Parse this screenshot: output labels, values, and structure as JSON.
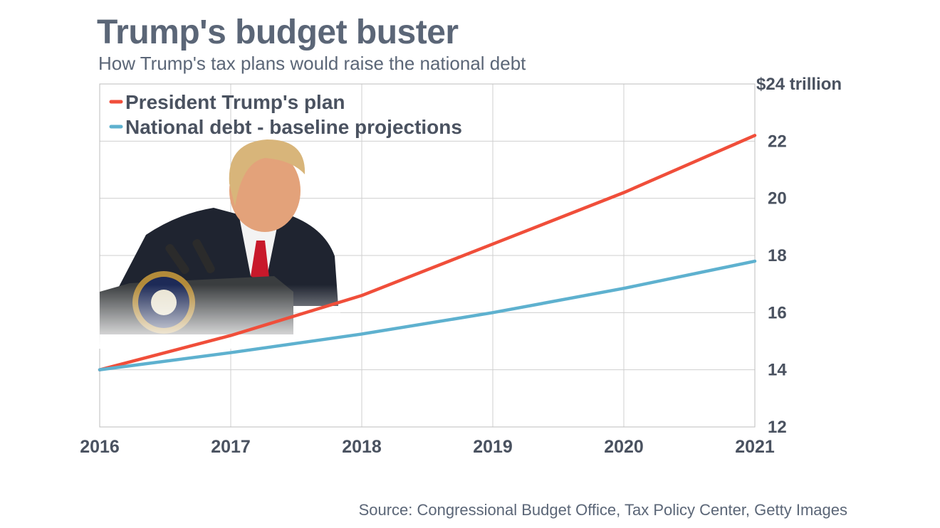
{
  "header": {
    "title": "Trump's budget buster",
    "subtitle": "How Trump's tax plans would raise the national debt"
  },
  "footer": {
    "source": "Source: Congressional Budget Office, Tax Policy Center, Getty Images"
  },
  "photo": {
    "description_icon": "podium-photo-icon"
  },
  "chart_data": {
    "type": "line",
    "title": "Trump's budget buster",
    "subtitle": "How Trump's tax plans would raise the national debt",
    "xlabel": "",
    "ylabel": "",
    "x": [
      2016,
      2017,
      2018,
      2019,
      2020,
      2021
    ],
    "x_tick_labels": [
      "2016",
      "2017",
      "2018",
      "2019",
      "2020",
      "2021"
    ],
    "ylim": [
      12,
      24
    ],
    "y_ticks": [
      12,
      14,
      16,
      18,
      20,
      22,
      24
    ],
    "y_tick_labels": [
      "12",
      "14",
      "16",
      "18",
      "20",
      "22",
      "$24 trillion"
    ],
    "grid": true,
    "legend_position": "top-left",
    "series": [
      {
        "name": "President Trump's plan",
        "color": "#f04e3a",
        "values": [
          14.0,
          15.2,
          16.6,
          18.4,
          20.2,
          22.2
        ]
      },
      {
        "name": "National debt - baseline projections",
        "color": "#5eb1cf",
        "values": [
          14.0,
          14.6,
          15.25,
          16.0,
          16.85,
          17.8
        ]
      }
    ]
  }
}
